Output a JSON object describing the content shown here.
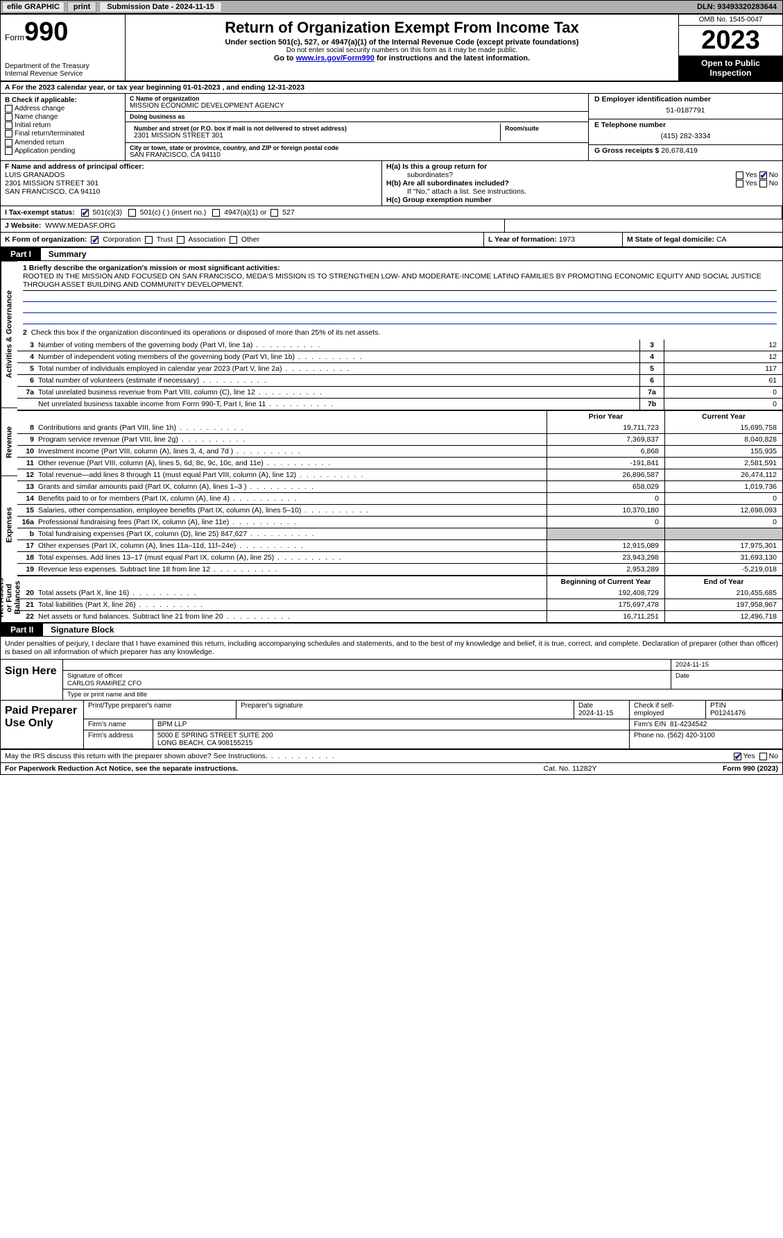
{
  "topbar": {
    "efile_label": "efile GRAPHIC",
    "print_btn": "print",
    "submission_label": "Submission Date - 2024-11-15",
    "dln": "DLN: 93493320283644"
  },
  "header": {
    "form_word": "Form",
    "form_num": "990",
    "dept1": "Department of the Treasury",
    "dept2": "Internal Revenue Service",
    "title": "Return of Organization Exempt From Income Tax",
    "subtitle": "Under section 501(c), 527, or 4947(a)(1) of the Internal Revenue Code (except private foundations)",
    "note1": "Do not enter social security numbers on this form as it may be made public.",
    "note2_pre": "Go to ",
    "note2_link": "www.irs.gov/Form990",
    "note2_post": " for instructions and the latest information.",
    "omb": "OMB No. 1545-0047",
    "year": "2023",
    "pub_insp": "Open to Public Inspection"
  },
  "row_a": "A For the 2023 calendar year, or tax year beginning 01-01-2023   , and ending 12-31-2023",
  "col_b": {
    "hdr": "B Check if applicable:",
    "opts": [
      "Address change",
      "Name change",
      "Initial return",
      "Final return/terminated",
      "Amended return",
      "Application pending"
    ]
  },
  "col_c": {
    "name_lab": "C Name of organization",
    "name": "MISSION ECONOMIC DEVELOPMENT AGENCY",
    "dba_lab": "Doing business as",
    "dba": "",
    "street_lab": "Number and street (or P.O. box if mail is not delivered to street address)",
    "street": "2301 MISSION STREET 301",
    "room_lab": "Room/suite",
    "room": "",
    "city_lab": "City or town, state or province, country, and ZIP or foreign postal code",
    "city": "SAN FRANCISCO, CA  94110"
  },
  "col_d": {
    "d_lab": "D Employer identification number",
    "d_val": "51-0187791",
    "e_lab": "E Telephone number",
    "e_val": "(415) 282-3334",
    "g_lab": "G Gross receipts $",
    "g_val": "26,678,419"
  },
  "row_f": {
    "f_lab": "F Name and address of principal officer:",
    "f_name": "LUIS GRANADOS",
    "f_addr1": "2301 MISSION STREET 301",
    "f_addr2": "SAN FRANCISCO, CA  94110",
    "ha_lab": "H(a) Is this a group return for",
    "ha_sub": "subordinates?",
    "hb_lab": "H(b) Are all subordinates included?",
    "hb_note": "If \"No,\" attach a list. See instructions.",
    "hc_lab": "H(c) Group exemption number",
    "yes": "Yes",
    "no": "No"
  },
  "row_i": {
    "i_lab": "I   Tax-exempt status:",
    "i_501c3": "501(c)(3)",
    "i_501c": "501(c) (  ) (insert no.)",
    "i_4947": "4947(a)(1) or",
    "i_527": "527"
  },
  "row_j": {
    "j_lab": "J   Website:",
    "j_val": "WWW.MEDASF.ORG"
  },
  "row_k": {
    "k_lab": "K Form of organization:",
    "k_corp": "Corporation",
    "k_trust": "Trust",
    "k_assoc": "Association",
    "k_other": "Other",
    "l_lab": "L Year of formation:",
    "l_val": "1973",
    "m_lab": "M State of legal domicile:",
    "m_val": "CA"
  },
  "parts": {
    "p1": "Part I",
    "p1_title": "Summary",
    "p2": "Part II",
    "p2_title": "Signature Block"
  },
  "side_labels": {
    "gov": "Activities & Governance",
    "rev": "Revenue",
    "exp": "Expenses",
    "net": "Net Assets or Fund Balances"
  },
  "mission": {
    "q1_lab": "1  Briefly describe the organization's mission or most significant activities:",
    "q1_text": "ROOTED IN THE MISSION AND FOCUSED ON SAN FRANCISCO, MEDA'S MISSION IS TO STRENGTHEN LOW- AND MODERATE-INCOME LATINO FAMILIES BY PROMOTING ECONOMIC EQUITY AND SOCIAL JUSTICE THROUGH ASSET BUILDING AND COMMUNITY DEVELOPMENT.",
    "q2": "Check this box      if the organization discontinued its operations or disposed of more than 25% of its net assets."
  },
  "gov_lines": [
    {
      "n": "3",
      "d": "Number of voting members of the governing body (Part VI, line 1a)",
      "c": "3",
      "v": "12"
    },
    {
      "n": "4",
      "d": "Number of independent voting members of the governing body (Part VI, line 1b)",
      "c": "4",
      "v": "12"
    },
    {
      "n": "5",
      "d": "Total number of individuals employed in calendar year 2023 (Part V, line 2a)",
      "c": "5",
      "v": "117"
    },
    {
      "n": "6",
      "d": "Total number of volunteers (estimate if necessary)",
      "c": "6",
      "v": "61"
    },
    {
      "n": "7a",
      "d": "Total unrelated business revenue from Part VIII, column (C), line 12",
      "c": "7a",
      "v": "0"
    },
    {
      "n": "",
      "d": "Net unrelated business taxable income from Form 990-T, Part I, line 11",
      "c": "7b",
      "v": "0"
    }
  ],
  "col_hdrs": {
    "prior": "Prior Year",
    "current": "Current Year"
  },
  "rev_lines": [
    {
      "n": "8",
      "d": "Contributions and grants (Part VIII, line 1h)",
      "p": "19,711,723",
      "c": "15,695,758"
    },
    {
      "n": "9",
      "d": "Program service revenue (Part VIII, line 2g)",
      "p": "7,369,837",
      "c": "8,040,828"
    },
    {
      "n": "10",
      "d": "Investment income (Part VIII, column (A), lines 3, 4, and 7d )",
      "p": "6,868",
      "c": "155,935"
    },
    {
      "n": "11",
      "d": "Other revenue (Part VIII, column (A), lines 5, 6d, 8c, 9c, 10c, and 11e)",
      "p": "-191,841",
      "c": "2,581,591"
    },
    {
      "n": "12",
      "d": "Total revenue—add lines 8 through 11 (must equal Part VIII, column (A), line 12)",
      "p": "26,896,587",
      "c": "26,474,112"
    }
  ],
  "exp_lines": [
    {
      "n": "13",
      "d": "Grants and similar amounts paid (Part IX, column (A), lines 1–3 )",
      "p": "658,029",
      "c": "1,019,736"
    },
    {
      "n": "14",
      "d": "Benefits paid to or for members (Part IX, column (A), line 4)",
      "p": "0",
      "c": "0"
    },
    {
      "n": "15",
      "d": "Salaries, other compensation, employee benefits (Part IX, column (A), lines 5–10)",
      "p": "10,370,180",
      "c": "12,698,093"
    },
    {
      "n": "16a",
      "d": "Professional fundraising fees (Part IX, column (A), line 11e)",
      "p": "0",
      "c": "0"
    },
    {
      "n": "b",
      "d": "Total fundraising expenses (Part IX, column (D), line 25) 847,627",
      "p": "",
      "c": "",
      "grey": true
    },
    {
      "n": "17",
      "d": "Other expenses (Part IX, column (A), lines 11a–11d, 11f–24e)",
      "p": "12,915,089",
      "c": "17,975,301"
    },
    {
      "n": "18",
      "d": "Total expenses. Add lines 13–17 (must equal Part IX, column (A), line 25)",
      "p": "23,943,298",
      "c": "31,693,130"
    },
    {
      "n": "19",
      "d": "Revenue less expenses. Subtract line 18 from line 12",
      "p": "2,953,289",
      "c": "-5,219,018"
    }
  ],
  "net_hdrs": {
    "begin": "Beginning of Current Year",
    "end": "End of Year"
  },
  "net_lines": [
    {
      "n": "20",
      "d": "Total assets (Part X, line 16)",
      "p": "192,408,729",
      "c": "210,455,685"
    },
    {
      "n": "21",
      "d": "Total liabilities (Part X, line 26)",
      "p": "175,697,478",
      "c": "197,958,967"
    },
    {
      "n": "22",
      "d": "Net assets or fund balances. Subtract line 21 from line 20",
      "p": "16,711,251",
      "c": "12,496,718"
    }
  ],
  "sig": {
    "decl": "Under penalties of perjury, I declare that I have examined this return, including accompanying schedules and statements, and to the best of my knowledge and belief, it is true, correct, and complete. Declaration of preparer (other than officer) is based on all information of which preparer has any knowledge.",
    "sign_here": "Sign Here",
    "sig_of_officer": "Signature of officer",
    "officer": "CARLOS RAMIREZ CFO",
    "type_name": "Type or print name and title",
    "date_lab": "Date",
    "date": "2024-11-15"
  },
  "paid": {
    "label": "Paid Preparer Use Only",
    "print_name_lab": "Print/Type preparer's name",
    "prep_sig_lab": "Preparer's signature",
    "date_lab": "Date",
    "date": "2024-11-15",
    "check_lab": "Check      if self-employed",
    "ptin_lab": "PTIN",
    "ptin": "P01241476",
    "firm_name_lab": "Firm's name",
    "firm_name": "BPM LLP",
    "firm_ein_lab": "Firm's EIN",
    "firm_ein": "81-4234542",
    "firm_addr_lab": "Firm's address",
    "firm_addr1": "5000 E SPRING STREET SUITE 200",
    "firm_addr2": "LONG BEACH, CA  908155215",
    "phone_lab": "Phone no.",
    "phone": "(562) 420-3100"
  },
  "discuss": {
    "q": "May the IRS discuss this return with the preparer shown above? See Instructions.",
    "yes": "Yes",
    "no": "No"
  },
  "foot": {
    "l": "For Paperwork Reduction Act Notice, see the separate instructions.",
    "m": "Cat. No. 11282Y",
    "r": "Form 990 (2023)"
  }
}
